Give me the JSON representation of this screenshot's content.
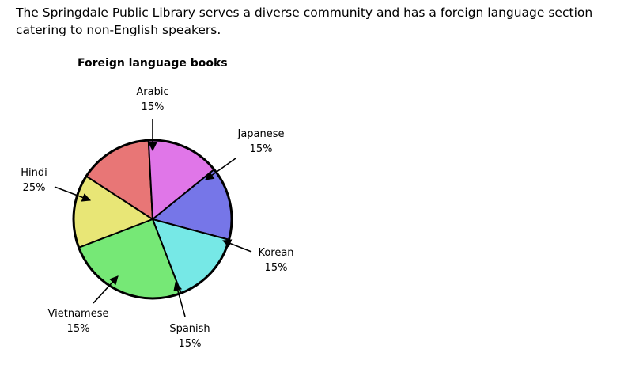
{
  "intro_text": "The Springdale Public Library serves a diverse community and has a foreign language section catering to non-English speakers.",
  "chart_data": {
    "type": "pie",
    "title": "Foreign language books",
    "slices": [
      {
        "label": "Arabic",
        "value": 15,
        "value_label": "15%",
        "color": "#e8e676"
      },
      {
        "label": "Japanese",
        "value": 15,
        "value_label": "15%",
        "color": "#e87676"
      },
      {
        "label": "Korean",
        "value": 15,
        "value_label": "15%",
        "color": "#e076e8"
      },
      {
        "label": "Spanish",
        "value": 15,
        "value_label": "15%",
        "color": "#7676e8"
      },
      {
        "label": "Vietnamese",
        "value": 15,
        "value_label": "15%",
        "color": "#76e8e6"
      },
      {
        "label": "Hindi",
        "value": 25,
        "value_label": "25%",
        "color": "#76e876"
      }
    ]
  }
}
